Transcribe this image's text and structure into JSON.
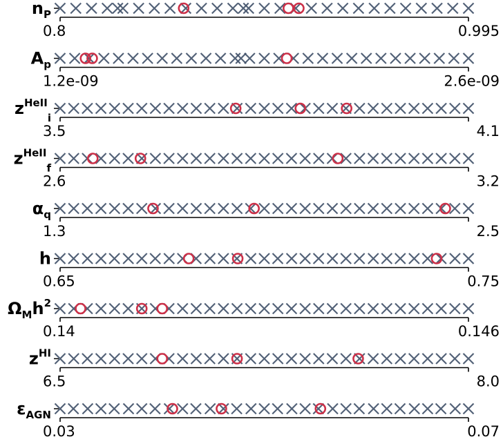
{
  "chart_data": {
    "type": "scatter",
    "colors": {
      "sample": "#44546c",
      "sample_dense": "#1e2d48",
      "selected": "#cc3048",
      "axis": "#000000"
    },
    "rows": [
      {
        "label": "n",
        "sub": "P",
        "sup": "",
        "min_label": "0.8",
        "max_label": "0.995",
        "range": [
          0.8,
          0.995
        ],
        "samples": [
          0.8,
          0.8075,
          0.815,
          0.8225,
          0.8275,
          0.83,
          0.8375,
          0.845,
          0.8525,
          0.86,
          0.8675,
          0.875,
          0.8825,
          0.8875,
          0.89,
          0.8975,
          0.905,
          0.9125,
          0.92,
          0.9275,
          0.935,
          0.9425,
          0.95,
          0.9575,
          0.965,
          0.9725,
          0.98,
          0.9875,
          0.995
        ],
        "selected": [
          0.859,
          0.909,
          0.914
        ]
      },
      {
        "label": "A",
        "sub": "p",
        "sup": "",
        "min_label": "1.2e-09",
        "max_label": "2.6e-09",
        "range": [
          1.2e-09,
          2.6e-09
        ],
        "samples": [
          1.2e-09,
          1.25e-09,
          1.3e-09,
          1.35e-09,
          1.4e-09,
          1.45e-09,
          1.5e-09,
          1.55e-09,
          1.6e-09,
          1.65e-09,
          1.7e-09,
          1.75e-09,
          1.8e-09,
          1.82e-09,
          1.85e-09,
          1.9e-09,
          1.95e-09,
          2e-09,
          2.05e-09,
          2.1e-09,
          2.15e-09,
          2.2e-09,
          2.25e-09,
          2.3e-09,
          2.35e-09,
          2.4e-09,
          2.45e-09,
          2.5e-09,
          2.55e-09,
          2.6e-09
        ],
        "selected": [
          1.287e-09,
          1.31e-09,
          1.977e-09
        ]
      },
      {
        "label": "z",
        "sub": "i",
        "sup": "HeII",
        "min_label": "3.5",
        "max_label": "4.1",
        "range": [
          3.5,
          4.1
        ],
        "samples": [
          3.5,
          3.52,
          3.54,
          3.56,
          3.58,
          3.6,
          3.62,
          3.64,
          3.66,
          3.68,
          3.7,
          3.72,
          3.74,
          3.76,
          3.78,
          3.8,
          3.82,
          3.84,
          3.86,
          3.88,
          3.9,
          3.92,
          3.94,
          3.96,
          3.98,
          4.0,
          4.02,
          4.04,
          4.06,
          4.08,
          4.1
        ],
        "selected": [
          3.758,
          3.853,
          3.921
        ]
      },
      {
        "label": "z",
        "sub": "f",
        "sup": "HeII",
        "min_label": "2.6",
        "max_label": "3.2",
        "range": [
          2.6,
          3.2
        ],
        "samples": [
          2.6,
          2.62,
          2.64,
          2.66,
          2.68,
          2.7,
          2.72,
          2.74,
          2.76,
          2.78,
          2.8,
          2.82,
          2.84,
          2.86,
          2.88,
          2.9,
          2.92,
          2.94,
          2.96,
          2.98,
          3.0,
          3.02,
          3.04,
          3.06,
          3.08,
          3.1,
          3.12,
          3.14,
          3.16,
          3.18,
          3.2
        ],
        "selected": [
          2.648,
          2.718,
          3.008
        ]
      },
      {
        "label": "α",
        "sub": "q",
        "sup": "",
        "min_label": "1.3",
        "max_label": "2.5",
        "range": [
          1.3,
          2.5
        ],
        "samples": [
          1.3,
          1.34,
          1.38,
          1.42,
          1.46,
          1.5,
          1.54,
          1.58,
          1.62,
          1.66,
          1.7,
          1.74,
          1.78,
          1.82,
          1.86,
          1.9,
          1.94,
          1.98,
          2.02,
          2.06,
          2.1,
          2.14,
          2.18,
          2.22,
          2.26,
          2.3,
          2.34,
          2.38,
          2.42,
          2.46,
          2.5
        ],
        "selected": [
          1.573,
          1.87,
          2.432
        ]
      },
      {
        "label": "h",
        "sub": "",
        "sup": "",
        "min_label": "0.65",
        "max_label": "0.75",
        "range": [
          0.65,
          0.75
        ],
        "samples": [
          0.65,
          0.6533,
          0.6567,
          0.66,
          0.6633,
          0.6667,
          0.67,
          0.6733,
          0.6767,
          0.68,
          0.6833,
          0.6867,
          0.69,
          0.6933,
          0.6967,
          0.7,
          0.7033,
          0.7067,
          0.71,
          0.7133,
          0.7167,
          0.72,
          0.7233,
          0.7267,
          0.73,
          0.7333,
          0.7367,
          0.74,
          0.7433,
          0.7467,
          0.75
        ],
        "selected": [
          0.6815,
          0.6935,
          0.7422
        ]
      },
      {
        "label": "Ω",
        "sub": "M",
        "sup": "",
        "tail": "h",
        "tail_sup": "2",
        "min_label": "0.14",
        "max_label": "0.146",
        "range": [
          0.14,
          0.146
        ],
        "samples": [
          0.14,
          0.1402,
          0.1404,
          0.1406,
          0.1408,
          0.141,
          0.1412,
          0.1414,
          0.1416,
          0.1418,
          0.142,
          0.1422,
          0.1424,
          0.1426,
          0.1428,
          0.143,
          0.1432,
          0.1434,
          0.1436,
          0.1438,
          0.144,
          0.1442,
          0.1444,
          0.1446,
          0.1448,
          0.145,
          0.1452,
          0.1454,
          0.1456,
          0.1458,
          0.146
        ],
        "selected": [
          0.1403,
          0.1412,
          0.1415
        ]
      },
      {
        "label": "z",
        "sub": "",
        "sup": "HI",
        "min_label": "6.5",
        "max_label": "8.0",
        "range": [
          6.5,
          8.0
        ],
        "samples": [
          6.5,
          6.55,
          6.6,
          6.65,
          6.7,
          6.75,
          6.8,
          6.85,
          6.9,
          6.95,
          7.0,
          7.05,
          7.1,
          7.15,
          7.2,
          7.25,
          7.3,
          7.35,
          7.4,
          7.45,
          7.5,
          7.55,
          7.6,
          7.65,
          7.7,
          7.75,
          7.8,
          7.85,
          7.9,
          7.95,
          8.0
        ],
        "selected": [
          6.875,
          7.15,
          7.595
        ]
      },
      {
        "label": "ε",
        "sub": "AGN",
        "sup": "",
        "min_label": "0.03",
        "max_label": "0.07",
        "range": [
          0.03,
          0.07
        ],
        "samples": [
          0.03,
          0.0313,
          0.0327,
          0.034,
          0.0353,
          0.0367,
          0.038,
          0.0393,
          0.0407,
          0.042,
          0.0433,
          0.0447,
          0.046,
          0.0473,
          0.0487,
          0.05,
          0.0513,
          0.0527,
          0.054,
          0.0553,
          0.0567,
          0.058,
          0.0593,
          0.0607,
          0.062,
          0.0633,
          0.0647,
          0.066,
          0.0673,
          0.0687,
          0.07
        ],
        "selected": [
          0.041,
          0.0458,
          0.0555
        ]
      }
    ]
  }
}
